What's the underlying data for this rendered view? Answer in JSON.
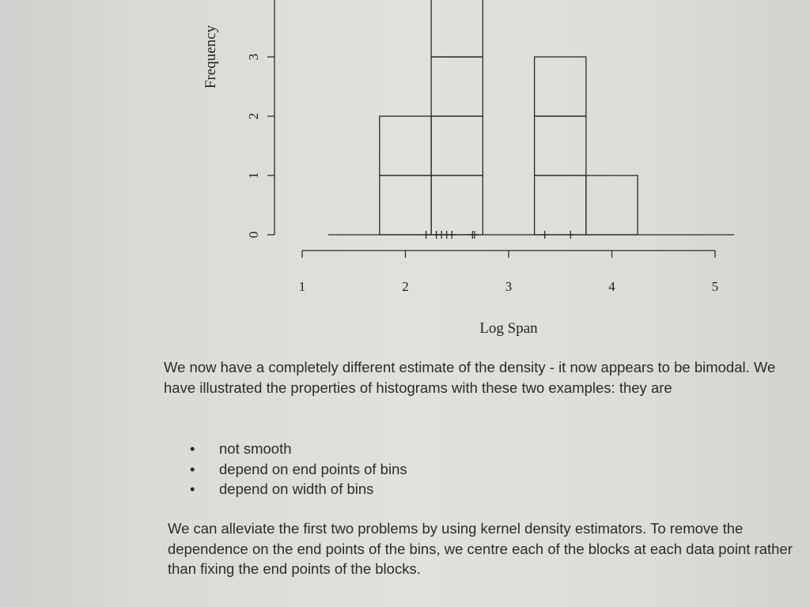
{
  "chart_data": {
    "type": "bar",
    "xlabel": "Log Span",
    "ylabel": "Frequency",
    "x_ticks": [
      "1",
      "2",
      "3",
      "4",
      "5"
    ],
    "y_ticks": [
      "0",
      "1",
      "2",
      "3"
    ],
    "xlim": [
      1,
      5
    ],
    "ylim": [
      0,
      4
    ],
    "bins": [
      {
        "start": 1.75,
        "end": 2.25,
        "count": 2
      },
      {
        "start": 2.25,
        "end": 2.75,
        "count": 4
      },
      {
        "start": 2.75,
        "end": 3.25,
        "count": 0
      },
      {
        "start": 3.25,
        "end": 3.75,
        "count": 3
      },
      {
        "start": 3.75,
        "end": 4.25,
        "count": 1
      }
    ],
    "rug": [
      2.2,
      2.3,
      2.35,
      2.4,
      2.45,
      2.65,
      2.67,
      3.35,
      3.6
    ],
    "grid": false
  },
  "text": {
    "para1": "We now have a completely different estimate of the density - it now appears to be bimodal. We have illustrated the properties of histograms with these two examples: they are",
    "bullets": [
      "not smooth",
      "depend on end points of bins",
      "depend on width of bins"
    ],
    "para2": "We can alleviate the first two problems by using kernel density estimators. To remove the dependence on the end points of the bins, we centre each of the blocks at each data point rather than fixing the end points of the blocks."
  }
}
